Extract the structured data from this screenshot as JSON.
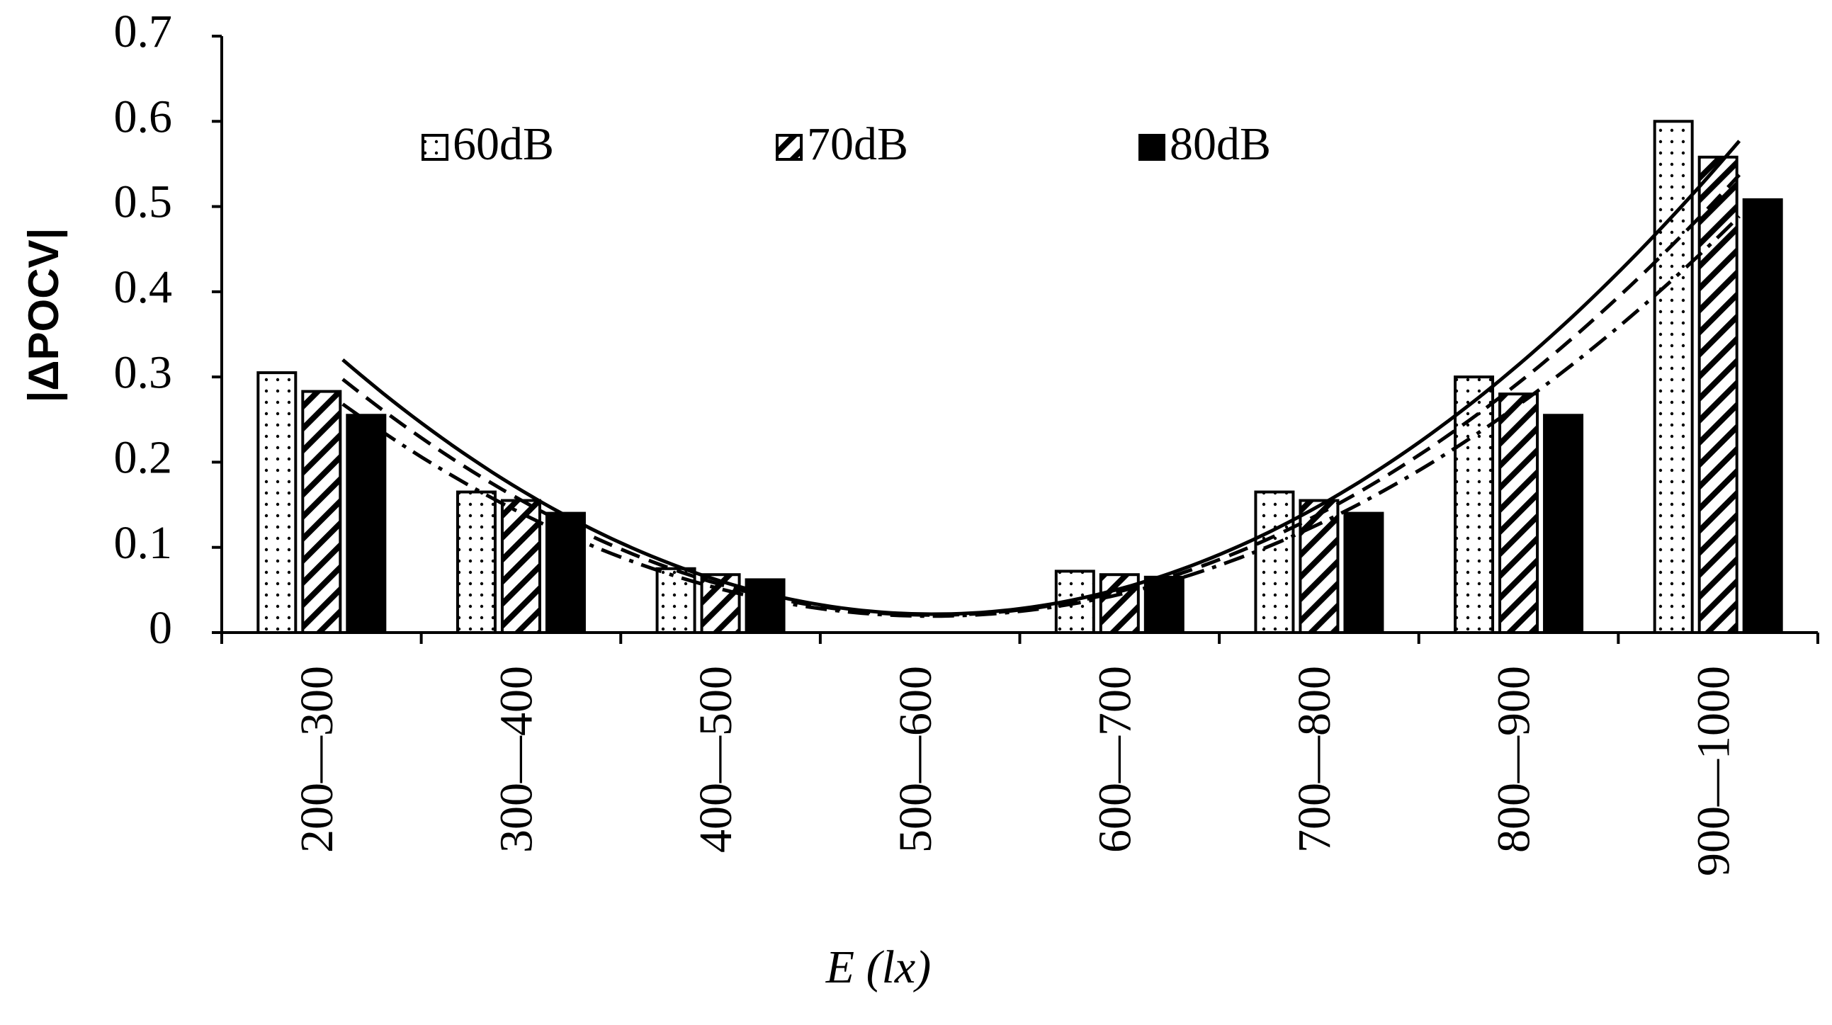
{
  "chart_data": {
    "type": "bar",
    "y_label": "|ΔPOCV|",
    "x_label": "E (lx)",
    "categories": [
      "200—300",
      "300—400",
      "400—500",
      "500—600",
      "600—700",
      "700—800",
      "800—900",
      "900—1000"
    ],
    "series": [
      {
        "name": "60dB",
        "color": "#ffffff",
        "pattern": "dots",
        "line_style": "solid",
        "values": [
          0.305,
          0.165,
          0.075,
          0,
          0.072,
          0.165,
          0.3,
          0.6
        ]
      },
      {
        "name": "70dB",
        "color": "#ffffff",
        "pattern": "hatch",
        "line_style": "dashed",
        "values": [
          0.283,
          0.155,
          0.068,
          0,
          0.068,
          0.155,
          0.28,
          0.558
        ]
      },
      {
        "name": "80dB",
        "color": "#000000",
        "pattern": "solid",
        "line_style": "dashdot",
        "values": [
          0.255,
          0.14,
          0.062,
          0,
          0.065,
          0.14,
          0.255,
          0.508
        ]
      }
    ],
    "trendline": "polynomial",
    "ylim": [
      0,
      0.7
    ],
    "yticks": [
      0,
      0.1,
      0.2,
      0.3,
      0.4,
      0.5,
      0.6,
      0.7
    ],
    "legend": "top"
  }
}
